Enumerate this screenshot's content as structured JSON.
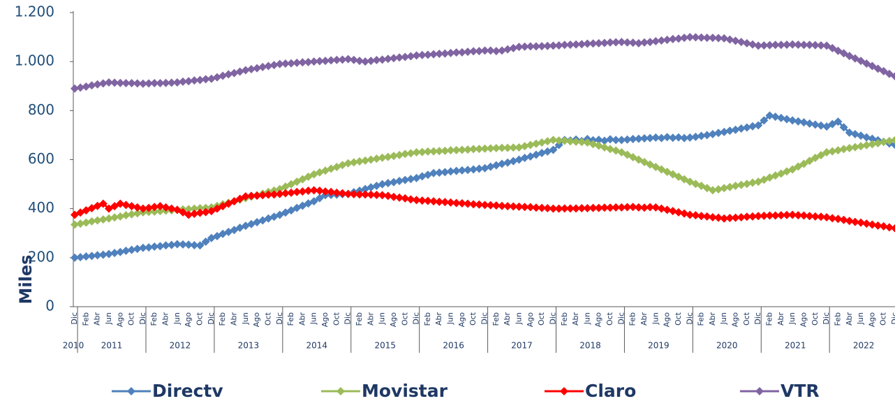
{
  "chart_data": {
    "type": "line",
    "y_label": "Miles",
    "categories": [
      "Dic",
      null,
      "Feb",
      null,
      "Abr",
      null,
      "Jun",
      null,
      "Ago",
      null,
      "Oct",
      null,
      "Dic",
      null,
      "Feb",
      null,
      "Abr",
      null,
      "Jun",
      null,
      "Ago",
      null,
      "Oct",
      null,
      "Dic",
      null,
      "Feb",
      null,
      "Abr",
      null,
      "Jun",
      null,
      "Ago",
      null,
      "Oct",
      null,
      "Dic",
      null,
      "Feb",
      null,
      "Abr",
      null,
      "Jun",
      null,
      "Ago",
      null,
      "Oct",
      null,
      "Dic",
      null,
      "Feb",
      null,
      "Abr",
      null,
      "Jun",
      null,
      "Ago",
      null,
      "Oct",
      null,
      "Dic",
      null,
      "Feb",
      null,
      "Abr",
      null,
      "Jun",
      null,
      "Ago",
      null,
      "Oct",
      null,
      "Dic",
      null,
      "Feb",
      null,
      "Abr",
      null,
      "Jun",
      null,
      "Ago",
      null,
      "Oct",
      null,
      "Dic",
      null,
      "Feb",
      null,
      "Abr",
      null,
      "Jun",
      null,
      "Ago",
      null,
      "Oct",
      null,
      "Dic",
      null,
      "Feb",
      null,
      "Abr",
      null,
      "Jun",
      null,
      "Ago",
      null,
      "Oct",
      null,
      "Dic",
      null,
      "Feb",
      null,
      "Abr",
      null,
      "Jun",
      null,
      "Ago",
      null,
      "Oct",
      null,
      "Dic",
      null,
      "Feb",
      null,
      "Abr",
      null,
      "Jun",
      null,
      "Ago",
      null,
      "Oct",
      null,
      "Dic",
      null,
      "Feb",
      null,
      "Abr",
      null,
      "Jun",
      null,
      "Ago",
      null,
      "Oct",
      null,
      "Dic"
    ],
    "years": [
      "2010",
      "2011",
      "2012",
      "2013",
      "2014",
      "2015",
      "2016",
      "2017",
      "2018",
      "2019",
      "2020",
      "2021",
      "2022"
    ],
    "series": [
      {
        "name": "Directv",
        "color": "#4f81bd",
        "values": [
          200,
          202,
          205,
          207,
          210,
          212,
          215,
          219,
          223,
          228,
          232,
          236,
          240,
          242,
          245,
          247,
          250,
          252,
          255,
          254,
          253,
          251,
          250,
          265,
          280,
          288,
          297,
          305,
          313,
          322,
          330,
          337,
          345,
          352,
          360,
          367,
          375,
          384,
          393,
          403,
          412,
          421,
          430,
          443,
          455,
          456,
          457,
          459,
          460,
          467,
          473,
          480,
          487,
          493,
          500,
          504,
          508,
          513,
          517,
          521,
          525,
          532,
          538,
          545,
          547,
          549,
          552,
          554,
          556,
          558,
          560,
          563,
          565,
          571,
          577,
          583,
          588,
          594,
          600,
          607,
          613,
          620,
          627,
          633,
          640,
          660,
          680,
          678,
          682,
          676,
          684,
          679,
          681,
          677,
          683,
          680,
          680,
          682,
          684,
          685,
          687,
          688,
          690,
          688,
          692,
          689,
          691,
          688,
          690,
          693,
          697,
          700,
          704,
          709,
          713,
          718,
          722,
          727,
          731,
          736,
          740,
          760,
          780,
          775,
          770,
          765,
          760,
          756,
          752,
          747,
          743,
          739,
          735,
          745,
          755,
          732,
          710,
          704,
          698,
          691,
          685,
          679,
          673,
          666,
          660
        ]
      },
      {
        "name": "Movistar",
        "color": "#9bbb59",
        "values": [
          335,
          339,
          343,
          348,
          352,
          356,
          360,
          364,
          368,
          373,
          377,
          381,
          385,
          387,
          388,
          390,
          392,
          393,
          395,
          397,
          398,
          400,
          402,
          403,
          405,
          411,
          418,
          424,
          430,
          436,
          443,
          449,
          455,
          461,
          468,
          474,
          480,
          490,
          500,
          510,
          520,
          530,
          540,
          548,
          555,
          563,
          570,
          578,
          585,
          589,
          593,
          596,
          600,
          604,
          608,
          611,
          615,
          619,
          623,
          626,
          630,
          631,
          633,
          634,
          635,
          636,
          638,
          639,
          640,
          641,
          643,
          644,
          645,
          646,
          647,
          648,
          648,
          649,
          650,
          655,
          660,
          665,
          670,
          675,
          680,
          678,
          677,
          675,
          673,
          672,
          670,
          663,
          657,
          650,
          643,
          637,
          630,
          620,
          610,
          600,
          590,
          580,
          570,
          560,
          550,
          540,
          530,
          520,
          510,
          501,
          493,
          484,
          475,
          479,
          484,
          488,
          493,
          497,
          501,
          506,
          510,
          518,
          527,
          535,
          543,
          552,
          560,
          572,
          583,
          595,
          607,
          618,
          630,
          634,
          638,
          643,
          647,
          651,
          655,
          659,
          663,
          667,
          672,
          676,
          680
        ]
      },
      {
        "name": "Claro",
        "color": "#ff0000",
        "values": [
          375,
          384,
          393,
          402,
          411,
          420,
          400,
          410,
          420,
          415,
          410,
          405,
          400,
          403,
          407,
          410,
          405,
          400,
          395,
          385,
          375,
          379,
          383,
          386,
          390,
          400,
          410,
          420,
          430,
          440,
          450,
          452,
          453,
          455,
          457,
          458,
          460,
          463,
          465,
          468,
          470,
          473,
          475,
          473,
          470,
          468,
          465,
          463,
          460,
          459,
          458,
          458,
          457,
          456,
          455,
          452,
          448,
          445,
          442,
          438,
          435,
          433,
          432,
          430,
          428,
          427,
          425,
          423,
          422,
          420,
          418,
          417,
          415,
          414,
          413,
          411,
          410,
          409,
          408,
          407,
          406,
          404,
          403,
          402,
          400,
          400,
          401,
          401,
          401,
          402,
          402,
          403,
          403,
          404,
          404,
          405,
          405,
          406,
          407,
          405,
          404,
          406,
          405,
          400,
          395,
          390,
          385,
          380,
          375,
          373,
          370,
          368,
          365,
          363,
          360,
          362,
          363,
          365,
          367,
          368,
          370,
          371,
          372,
          372,
          373,
          374,
          375,
          373,
          372,
          370,
          368,
          367,
          365,
          361,
          358,
          354,
          350,
          346,
          343,
          339,
          335,
          331,
          328,
          324,
          320
        ]
      },
      {
        "name": "VTR",
        "color": "#8064a2",
        "values": [
          890,
          894,
          898,
          903,
          907,
          911,
          915,
          914,
          913,
          912,
          912,
          911,
          910,
          911,
          912,
          912,
          913,
          914,
          915,
          918,
          920,
          923,
          925,
          928,
          930,
          936,
          942,
          948,
          953,
          959,
          965,
          969,
          973,
          978,
          982,
          986,
          990,
          992,
          993,
          995,
          997,
          998,
          1000,
          1002,
          1003,
          1005,
          1007,
          1008,
          1010,
          1007,
          1003,
          1000,
          1003,
          1006,
          1008,
          1011,
          1014,
          1017,
          1019,
          1022,
          1025,
          1027,
          1028,
          1030,
          1032,
          1033,
          1035,
          1037,
          1038,
          1040,
          1042,
          1043,
          1045,
          1045,
          1043,
          1045,
          1050,
          1055,
          1060,
          1061,
          1062,
          1062,
          1063,
          1064,
          1065,
          1066,
          1068,
          1069,
          1070,
          1071,
          1073,
          1074,
          1075,
          1076,
          1078,
          1079,
          1080,
          1078,
          1077,
          1075,
          1078,
          1080,
          1083,
          1086,
          1089,
          1092,
          1094,
          1097,
          1100,
          1099,
          1098,
          1097,
          1097,
          1096,
          1095,
          1090,
          1085,
          1080,
          1075,
          1070,
          1065,
          1066,
          1067,
          1068,
          1068,
          1069,
          1070,
          1069,
          1068,
          1068,
          1067,
          1066,
          1065,
          1055,
          1044,
          1034,
          1023,
          1013,
          1003,
          992,
          982,
          971,
          961,
          950,
          940
        ]
      }
    ],
    "ylim": [
      0,
      1200
    ],
    "yticks": [
      0,
      200,
      400,
      600,
      800,
      {
        "value": 1000,
        "label": "1.000"
      },
      {
        "value": 1200,
        "label": "1.200"
      }
    ],
    "legend": "bottom"
  }
}
